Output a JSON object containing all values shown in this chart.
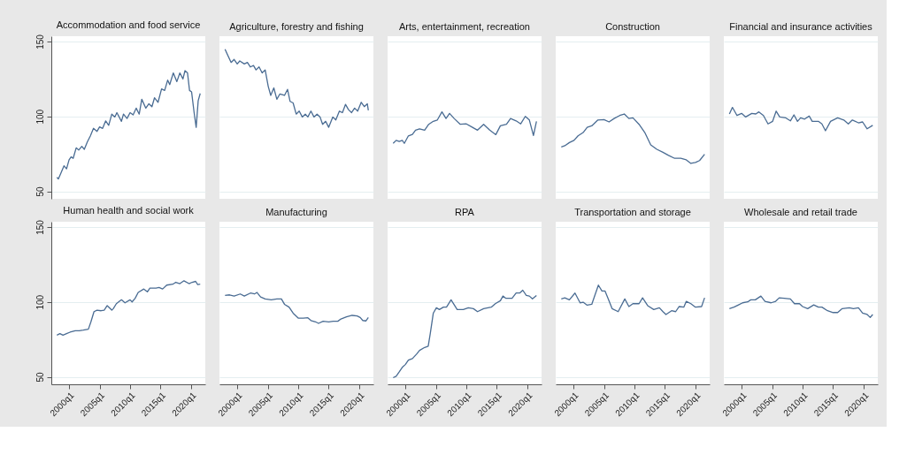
{
  "chart_data": [
    {
      "type": "line",
      "title": "Accommodation and food service",
      "tick_labels": "y",
      "grid": "y",
      "xlim": [
        "1997-02",
        "2022-05"
      ],
      "ylim": [
        45,
        153.5
      ],
      "yticks": [
        50,
        100,
        150
      ],
      "x": [
        "1998-01",
        "1998-04",
        "1998-10",
        "1999-03",
        "1999-08",
        "2000-01",
        "2000-05",
        "2000-09",
        "2001-03",
        "2001-08",
        "2002-02",
        "2002-07",
        "2003-01",
        "2003-07",
        "2004-01",
        "2004-08",
        "2005-01",
        "2005-07",
        "2006-01",
        "2006-07",
        "2007-01",
        "2007-07",
        "2007-11",
        "2008-08",
        "2008-12",
        "2009-07",
        "2010-01",
        "2010-07",
        "2011-01",
        "2011-07",
        "2011-12",
        "2012-08",
        "2013-02",
        "2013-08",
        "2014-01",
        "2014-08",
        "2015-03",
        "2015-09",
        "2016-03",
        "2016-07",
        "2017-02",
        "2017-09",
        "2018-03",
        "2018-09",
        "2019-01",
        "2019-06",
        "2019-10",
        "2020-02",
        "2020-07",
        "2020-11",
        "2021-03",
        "2021-07"
      ],
      "series": [
        {
          "color": "#4a6c93",
          "values": [
            59.3,
            58.3,
            63,
            67,
            65,
            71,
            73,
            72,
            79,
            77.5,
            80,
            78,
            83,
            87,
            92,
            90,
            93,
            92,
            97,
            94,
            101.5,
            99.6,
            102.5,
            96.7,
            101.5,
            98.6,
            102.5,
            101,
            105.5,
            101.5,
            111.4,
            105.5,
            108.4,
            106.5,
            112.4,
            109.4,
            118.3,
            117.3,
            124.2,
            121.2,
            129,
            123.2,
            129,
            125,
            130.5,
            129,
            117.3,
            116.3,
            102.5,
            92.7,
            110.4,
            115.3
          ]
        }
      ]
    },
    {
      "type": "line",
      "title": "Agriculture, forestry and fishing",
      "tick_labels": false,
      "grid": "y",
      "xlim": [
        "1997-02",
        "2022-05"
      ],
      "ylim": [
        45,
        153.5
      ],
      "yticks": [
        50,
        100,
        150
      ],
      "x": [
        "1998-01",
        "1999-01",
        "1999-07",
        "2000-01",
        "2000-06",
        "2001-03",
        "2001-09",
        "2002-03",
        "2002-09",
        "2003-02",
        "2003-08",
        "2004-02",
        "2004-08",
        "2005-02",
        "2005-07",
        "2006-01",
        "2006-07",
        "2007-01",
        "2007-10",
        "2008-04",
        "2008-09",
        "2009-03",
        "2009-09",
        "2010-03",
        "2010-09",
        "2011-03",
        "2011-08",
        "2012-02",
        "2012-08",
        "2013-02",
        "2013-08",
        "2014-01",
        "2014-07",
        "2015-01",
        "2015-09",
        "2016-03",
        "2016-10",
        "2017-04",
        "2017-10",
        "2018-04",
        "2018-10",
        "2019-04",
        "2019-10",
        "2020-05",
        "2020-11",
        "2021-05",
        "2021-07"
      ],
      "series": [
        {
          "color": "#4a6c93",
          "values": [
            144.8,
            136,
            138,
            135,
            137,
            135,
            136,
            133,
            134,
            131,
            133,
            129,
            131,
            120,
            114,
            119,
            111.4,
            115,
            114,
            118,
            110,
            109,
            101.5,
            103.5,
            99.6,
            101.5,
            99.6,
            103.5,
            99.6,
            101.5,
            99.6,
            94.7,
            96.7,
            92.7,
            99.6,
            97.6,
            103.5,
            102.5,
            108,
            104.5,
            102.5,
            105.5,
            103.5,
            109.4,
            106.5,
            108.4,
            104
          ]
        }
      ]
    },
    {
      "type": "line",
      "title": "Arts, entertainment, recreation",
      "tick_labels": false,
      "grid": "y",
      "xlim": [
        "1997-02",
        "2022-05"
      ],
      "ylim": [
        45,
        153.5
      ],
      "yticks": [
        50,
        100,
        150
      ],
      "x": [
        "1998-01",
        "1998-07",
        "1999-01",
        "1999-07",
        "1999-11",
        "2000-07",
        "2001-03",
        "2001-09",
        "2002-05",
        "2003-03",
        "2003-11",
        "2004-08",
        "2005-04",
        "2006-01",
        "2006-09",
        "2007-04",
        "2008-01",
        "2009-01",
        "2010-01",
        "2011-01",
        "2011-11",
        "2012-11",
        "2013-11",
        "2014-11",
        "2015-08",
        "2016-08",
        "2017-04",
        "2018-03",
        "2018-12",
        "2019-09",
        "2020-05",
        "2021-01",
        "2021-07"
      ],
      "series": [
        {
          "color": "#4a6c93",
          "values": [
            82,
            84,
            83.3,
            84,
            82,
            87,
            88,
            90.8,
            91.7,
            90.8,
            94.7,
            96.7,
            97.6,
            103,
            98.6,
            102,
            98.6,
            94.7,
            95,
            92.7,
            90.8,
            94.7,
            90.8,
            87.8,
            93.7,
            94.7,
            98.6,
            97,
            95,
            100,
            97.6,
            87.2,
            96.7
          ]
        }
      ]
    },
    {
      "type": "line",
      "title": "Construction",
      "tick_labels": false,
      "grid": "y",
      "xlim": [
        "1997-02",
        "2022-05"
      ],
      "ylim": [
        45,
        153.5
      ],
      "yticks": [
        50,
        100,
        150
      ],
      "x": [
        "1998-01",
        "1998-08",
        "1999-05",
        "2000-02",
        "2000-10",
        "2001-08",
        "2002-04",
        "2003-01",
        "2004-01",
        "2005-01",
        "2005-11",
        "2006-09",
        "2007-08",
        "2008-05",
        "2009-02",
        "2009-10",
        "2010-10",
        "2011-10",
        "2012-09",
        "2013-09",
        "2014-09",
        "2015-08",
        "2016-08",
        "2017-08",
        "2018-07",
        "2019-04",
        "2020-01",
        "2020-09",
        "2021-07"
      ],
      "series": [
        {
          "color": "#4a6c93",
          "values": [
            79.6,
            80.4,
            82.5,
            84,
            87,
            89.2,
            92.7,
            93.7,
            97.6,
            97.8,
            96.3,
            98.6,
            100.6,
            101.6,
            98.6,
            99,
            94.7,
            88.8,
            81,
            78,
            76,
            74,
            72,
            72,
            71,
            68.6,
            69.2,
            70.5,
            74.7
          ]
        }
      ]
    },
    {
      "type": "line",
      "title": "Financial and insurance activities",
      "tick_labels": false,
      "grid": "y",
      "xlim": [
        "1997-02",
        "2022-05"
      ],
      "ylim": [
        45,
        153.5
      ],
      "yticks": [
        50,
        100,
        150
      ],
      "x": [
        "1998-01",
        "1998-07",
        "1999-04",
        "2000-01",
        "2000-09",
        "2001-09",
        "2002-05",
        "2002-11",
        "2003-08",
        "2004-05",
        "2005-02",
        "2005-09",
        "2006-04",
        "2007-04",
        "2008-01",
        "2008-08",
        "2009-03",
        "2009-09",
        "2010-05",
        "2011-02",
        "2011-08",
        "2012-08",
        "2013-03",
        "2013-10",
        "2014-08",
        "2015-10",
        "2016-10",
        "2017-07",
        "2018-03",
        "2019-03",
        "2019-11",
        "2020-08",
        "2021-07"
      ],
      "series": [
        {
          "color": "#4a6c93",
          "values": [
            101.6,
            106,
            100.6,
            102,
            99.6,
            102,
            101.6,
            103,
            100.6,
            95,
            96.7,
            103.5,
            99.6,
            99,
            97,
            101,
            96.7,
            99,
            98.2,
            100.2,
            96.7,
            96.7,
            95,
            90.4,
            96.7,
            99,
            97.6,
            95,
            97.6,
            95.7,
            96.3,
            91.7,
            94
          ]
        }
      ]
    },
    {
      "type": "line",
      "title": "Human health and social work",
      "grid": "y",
      "xlim": [
        "1997-02",
        "2022-05"
      ],
      "ylim": [
        45,
        153.5
      ],
      "yticks": [
        50,
        100,
        150
      ],
      "xticks": [
        {
          "value": "2000-01",
          "label": "2000q1"
        },
        {
          "value": "2005-01",
          "label": "2005q1"
        },
        {
          "value": "2010-01",
          "label": "2010q1"
        },
        {
          "value": "2015-01",
          "label": "2015q1"
        },
        {
          "value": "2020-01",
          "label": "2020q1"
        }
      ],
      "x": [
        "1998-01",
        "1998-07",
        "1999-01",
        "1999-08",
        "2000-03",
        "2001-01",
        "2001-09",
        "2002-05",
        "2003-03",
        "2003-08",
        "2004-02",
        "2004-08",
        "2005-04",
        "2005-10",
        "2006-04",
        "2007-01",
        "2007-04",
        "2007-10",
        "2008-08",
        "2009-03",
        "2010-01",
        "2010-05",
        "2010-11",
        "2011-05",
        "2012-04",
        "2012-11",
        "2013-04",
        "2014-04",
        "2014-10",
        "2015-05",
        "2016-01",
        "2017-01",
        "2017-07",
        "2018-03",
        "2018-11",
        "2019-09",
        "2020-03",
        "2020-10",
        "2021-02",
        "2021-07"
      ],
      "series": [
        {
          "color": "#4a6c93",
          "values": [
            77.8,
            78.8,
            77.8,
            78.8,
            79.8,
            80.8,
            80.8,
            81.2,
            81.8,
            86.7,
            93.5,
            94.5,
            94.1,
            94.5,
            97.5,
            94.5,
            95.5,
            98.8,
            101.4,
            99.4,
            101.4,
            100,
            102.4,
            106.3,
            108.6,
            106.7,
            109.2,
            109.2,
            109.6,
            108.6,
            111.2,
            111.8,
            113.1,
            112.2,
            114.1,
            112.2,
            113.1,
            113.7,
            111.6,
            111.8
          ]
        }
      ]
    },
    {
      "type": "line",
      "title": "Manufacturing",
      "tick_labels": "x",
      "grid": "y",
      "xlim": [
        "1997-02",
        "2022-05"
      ],
      "ylim": [
        45,
        153.5
      ],
      "yticks": [
        50,
        100,
        150
      ],
      "xticks": [
        {
          "value": "2000-01",
          "label": "2000q1"
        },
        {
          "value": "2005-01",
          "label": "2005q1"
        },
        {
          "value": "2010-01",
          "label": "2010q1"
        },
        {
          "value": "2015-01",
          "label": "2015q1"
        },
        {
          "value": "2020-01",
          "label": "2020q1"
        }
      ],
      "x": [
        "1998-01",
        "1998-10",
        "1999-07",
        "2000-07",
        "2001-03",
        "2002-03",
        "2002-11",
        "2003-04",
        "2003-11",
        "2004-08",
        "2005-08",
        "2006-07",
        "2007-04",
        "2007-10",
        "2008-07",
        "2009-03",
        "2010-01",
        "2010-11",
        "2011-08",
        "2012-02",
        "2012-11",
        "2013-05",
        "2014-02",
        "2015-01",
        "2015-10",
        "2016-07",
        "2017-01",
        "2017-12",
        "2018-11",
        "2019-09",
        "2020-03",
        "2020-08",
        "2021-02",
        "2021-07"
      ],
      "series": [
        {
          "color": "#4a6c93",
          "values": [
            104.3,
            104.7,
            103.9,
            105.3,
            103.9,
            105.9,
            105.3,
            106.3,
            103.3,
            102,
            101.4,
            102,
            102,
            98.4,
            96.5,
            92.5,
            89.2,
            89.2,
            89.4,
            87.6,
            86.7,
            85.7,
            87.1,
            86.7,
            87.1,
            87.1,
            88.6,
            90,
            91,
            90.6,
            89.6,
            87.6,
            87.3,
            89.6
          ]
        }
      ]
    },
    {
      "type": "line",
      "title": "RPA",
      "tick_labels": "x",
      "grid": "y",
      "xlim": [
        "1997-02",
        "2022-05"
      ],
      "ylim": [
        45,
        153.5
      ],
      "yticks": [
        50,
        100,
        150
      ],
      "xticks": [
        {
          "value": "2000-01",
          "label": "2000q1"
        },
        {
          "value": "2005-01",
          "label": "2005q1"
        },
        {
          "value": "2010-01",
          "label": "2010q1"
        },
        {
          "value": "2015-01",
          "label": "2015q1"
        },
        {
          "value": "2020-01",
          "label": "2020q1"
        }
      ],
      "x": [
        "1998-01",
        "1998-07",
        "1999-01",
        "1999-07",
        "2000-01",
        "2000-07",
        "2001-03",
        "2001-11",
        "2002-05",
        "2003-03",
        "2003-10",
        "2004-02",
        "2004-08",
        "2005-02",
        "2005-08",
        "2006-04",
        "2006-10",
        "2007-07",
        "2008-07",
        "2009-07",
        "2010-05",
        "2011-03",
        "2011-11",
        "2012-11",
        "2014-02",
        "2014-10",
        "2015-08",
        "2016-01",
        "2016-07",
        "2017-07",
        "2018-03",
        "2018-10",
        "2019-04",
        "2019-11",
        "2020-05",
        "2020-11",
        "2021-07"
      ],
      "series": [
        {
          "color": "#4a6c93",
          "values": [
            49.4,
            50.4,
            53.3,
            56.3,
            58.2,
            61.2,
            62.2,
            65.1,
            67.6,
            69.6,
            70.4,
            78.8,
            92.5,
            96.1,
            94.9,
            96.5,
            96.5,
            101.4,
            94.9,
            94.9,
            96.1,
            95.5,
            93.5,
            95.5,
            96.5,
            98.8,
            100.8,
            103.9,
            102.4,
            102.4,
            105.9,
            105.9,
            107.8,
            104.3,
            103.9,
            102,
            104.3
          ]
        }
      ]
    },
    {
      "type": "line",
      "title": "Transportation and storage",
      "tick_labels": "x",
      "grid": "y",
      "xlim": [
        "1997-02",
        "2022-05"
      ],
      "ylim": [
        45,
        153.5
      ],
      "yticks": [
        50,
        100,
        150
      ],
      "xticks": [
        {
          "value": "2000-01",
          "label": "2000q1"
        },
        {
          "value": "2005-01",
          "label": "2005q1"
        },
        {
          "value": "2010-01",
          "label": "2010q1"
        },
        {
          "value": "2015-01",
          "label": "2015q1"
        },
        {
          "value": "2020-01",
          "label": "2020q1"
        }
      ],
      "x": [
        "1998-01",
        "1998-08",
        "1999-05",
        "2000-04",
        "2001-02",
        "2001-08",
        "2002-04",
        "2003-01",
        "2003-07",
        "2004-02",
        "2004-09",
        "2005-03",
        "2005-09",
        "2006-05",
        "2007-05",
        "2008-06",
        "2009-02",
        "2009-10",
        "2010-10",
        "2011-05",
        "2012-03",
        "2013-03",
        "2014-02",
        "2014-09",
        "2015-03",
        "2016-02",
        "2016-10",
        "2017-05",
        "2018-02",
        "2018-07",
        "2019-04",
        "2020-01",
        "2021-01",
        "2021-07"
      ],
      "series": [
        {
          "color": "#4a6c93",
          "values": [
            102,
            102.7,
            101.4,
            105.9,
            99.4,
            99.8,
            97.8,
            98.4,
            104.3,
            111.2,
            107.3,
            107.3,
            102.4,
            95.5,
            93.5,
            102,
            96.9,
            98.8,
            98.8,
            102.7,
            97.5,
            94.9,
            96.1,
            93.5,
            91.6,
            94.1,
            93.5,
            96.9,
            96.5,
            100.4,
            98.8,
            96.5,
            96.9,
            102.7
          ]
        }
      ]
    },
    {
      "type": "line",
      "title": "Wholesale and retail trade",
      "tick_labels": "x",
      "grid": "y",
      "xlim": [
        "1997-02",
        "2022-05"
      ],
      "ylim": [
        45,
        153.5
      ],
      "yticks": [
        50,
        100,
        150
      ],
      "xticks": [
        {
          "value": "2000-01",
          "label": "2000q1"
        },
        {
          "value": "2005-01",
          "label": "2005q1"
        },
        {
          "value": "2010-01",
          "label": "2010q1"
        },
        {
          "value": "2015-01",
          "label": "2015q1"
        },
        {
          "value": "2020-01",
          "label": "2020q1"
        }
      ],
      "x": [
        "1998-01",
        "1998-10",
        "1999-07",
        "2000-03",
        "2001-01",
        "2001-07",
        "2002-04",
        "2003-03",
        "2003-11",
        "2004-11",
        "2005-08",
        "2006-03",
        "2007-01",
        "2008-01",
        "2008-09",
        "2009-07",
        "2010-01",
        "2010-11",
        "2011-11",
        "2012-08",
        "2013-03",
        "2014-02",
        "2015-01",
        "2015-10",
        "2016-07",
        "2017-09",
        "2018-05",
        "2019-03",
        "2019-11",
        "2020-08",
        "2021-02",
        "2021-07"
      ],
      "series": [
        {
          "color": "#4a6c93",
          "values": [
            95.5,
            96.5,
            98,
            99.4,
            100,
            101.4,
            101.4,
            103.9,
            100.4,
            99.4,
            100.4,
            102.7,
            102.4,
            102,
            98.8,
            98.8,
            96.9,
            95.5,
            98,
            96.5,
            96.5,
            94.1,
            92.9,
            92.9,
            95.5,
            96.1,
            95.5,
            96.1,
            92.5,
            91.6,
            89.6,
            91.6
          ]
        }
      ]
    }
  ]
}
